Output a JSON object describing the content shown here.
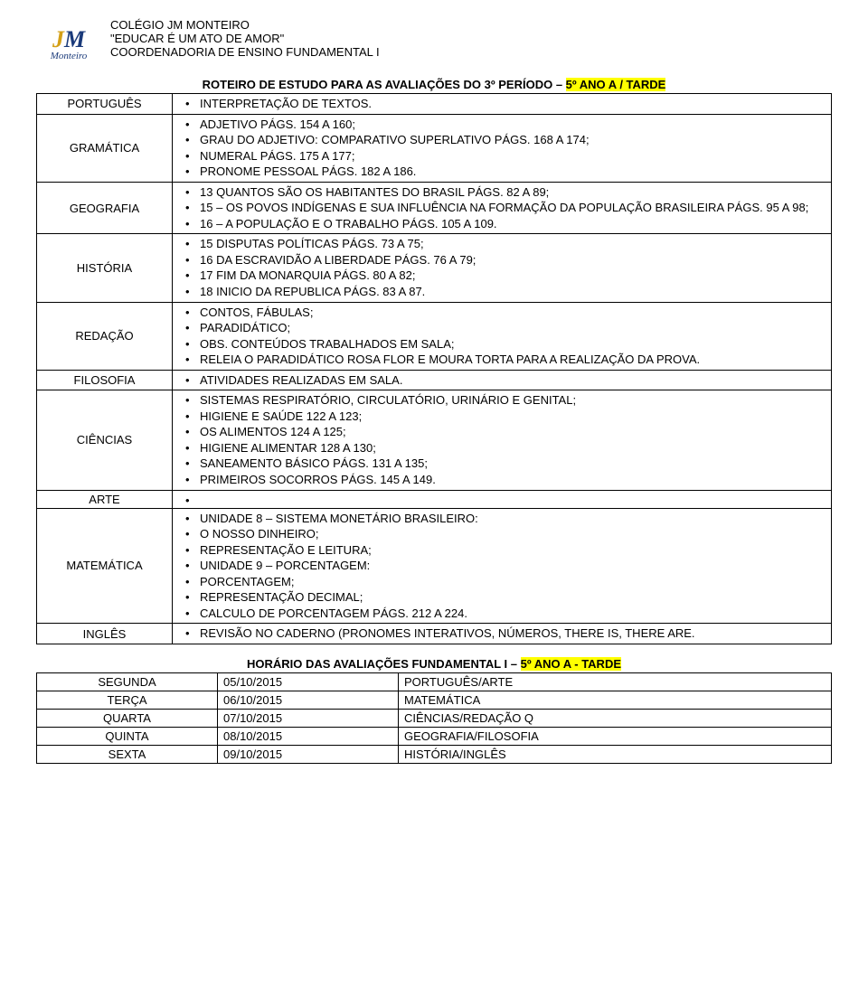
{
  "header": {
    "school": "COLÉGIO JM MONTEIRO",
    "motto": "\"EDUCAR É UM ATO DE AMOR\"",
    "dept": "COORDENADORIA DE ENSINO FUNDAMENTAL I",
    "logo_top": "JM",
    "logo_bottom": "Monteiro"
  },
  "title": {
    "prefix": "ROTEIRO DE ESTUDO PARA AS AVALIAÇÕES DO 3º PERÍODO – ",
    "highlight": "5º ANO A / TARDE"
  },
  "subjects": [
    {
      "name": "PORTUGUÊS",
      "items": [
        "INTERPRETAÇÃO DE TEXTOS."
      ]
    },
    {
      "name": "GRAMÁTICA",
      "items": [
        "ADJETIVO PÁGS. 154 A 160;",
        "GRAU DO ADJETIVO: COMPARATIVO SUPERLATIVO PÁGS. 168 A 174;",
        "NUMERAL PÁGS. 175 A 177;",
        "PRONOME PESSOAL PÁGS. 182 A 186."
      ]
    },
    {
      "name": "GEOGRAFIA",
      "items": [
        "13 QUANTOS SÃO OS HABITANTES DO BRASIL PÁGS. 82 A 89;",
        "15 – OS POVOS INDÍGENAS E SUA INFLUÊNCIA NA FORMAÇÃO DA POPULAÇÃO BRASILEIRA PÁGS. 95 A 98;",
        "16 – A POPULAÇÃO E O TRABALHO PÁGS. 105 A 109."
      ]
    },
    {
      "name": "HISTÓRIA",
      "items": [
        "15 DISPUTAS POLÍTICAS PÁGS. 73 A 75;",
        "16 DA ESCRAVIDÃO A LIBERDADE PÁGS. 76 A 79;",
        "17 FIM DA MONARQUIA PÁGS. 80 A 82;",
        "18 INICIO DA REPUBLICA PÁGS. 83 A 87."
      ]
    },
    {
      "name": "REDAÇÃO",
      "items": [
        "CONTOS, FÁBULAS;",
        "PARADIDÁTICO;",
        "OBS. CONTEÚDOS TRABALHADOS EM SALA;",
        "RELEIA O PARADIDÁTICO ROSA FLOR E MOURA TORTA PARA A REALIZAÇÃO DA PROVA."
      ]
    },
    {
      "name": "FILOSOFIA",
      "items": [
        "ATIVIDADES REALIZADAS EM SALA."
      ]
    },
    {
      "name": "CIÊNCIAS",
      "items": [
        "SISTEMAS RESPIRATÓRIO, CIRCULATÓRIO, URINÁRIO E GENITAL;",
        "HIGIENE E SAÚDE 122 A 123;",
        "OS ALIMENTOS 124 A 125;",
        "HIGIENE ALIMENTAR 128 A 130;",
        "SANEAMENTO BÁSICO PÁGS. 131 A 135;",
        "PRIMEIROS SOCORROS PÁGS. 145 A 149."
      ]
    },
    {
      "name": "ARTE",
      "items": [
        ""
      ]
    },
    {
      "name": "MATEMÁTICA",
      "items": [
        "UNIDADE 8 – SISTEMA MONETÁRIO BRASILEIRO:",
        "O NOSSO DINHEIRO;",
        "REPRESENTAÇÃO E LEITURA;",
        "UNIDADE 9 – PORCENTAGEM:",
        "PORCENTAGEM;",
        "REPRESENTAÇÃO DECIMAL;",
        "CALCULO DE PORCENTAGEM PÁGS. 212 A 224."
      ]
    },
    {
      "name": "INGLÊS",
      "items": [
        "REVISÃO NO CADERNO (PRONOMES INTERATIVOS, NÚMEROS, THERE IS, THERE ARE."
      ]
    }
  ],
  "schedule": {
    "title_prefix": "HORÁRIO DAS AVALIAÇÕES FUNDAMENTAL I – ",
    "title_highlight": "5º ANO A - TARDE",
    "rows": [
      {
        "day": "SEGUNDA",
        "date": "05/10/2015",
        "subj": "PORTUGUÊS/ARTE"
      },
      {
        "day": "TERÇA",
        "date": "06/10/2015",
        "subj": "MATEMÁTICA"
      },
      {
        "day": "QUARTA",
        "date": "07/10/2015",
        "subj": "CIÊNCIAS/REDAÇÃO Q"
      },
      {
        "day": "QUINTA",
        "date": "08/10/2015",
        "subj": "GEOGRAFIA/FILOSOFIA"
      },
      {
        "day": "SEXTA",
        "date": "09/10/2015",
        "subj": "HISTÓRIA/INGLÊS"
      }
    ]
  }
}
